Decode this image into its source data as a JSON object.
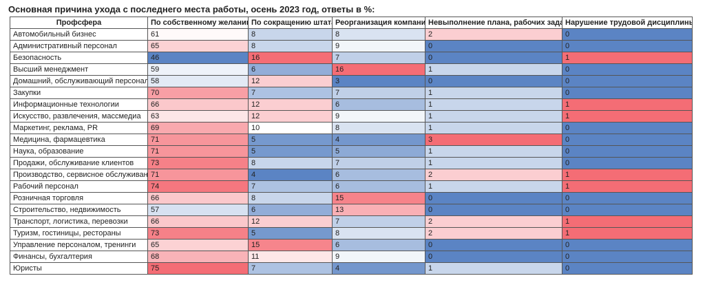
{
  "chart_data": {
    "type": "heatmap",
    "title": "Основная причина ухода с последнего места работы, осень 2023 год, ответы в %:",
    "row_header": "Профсфера",
    "columns": [
      "По собственному желанию",
      "По сокращению штата",
      "Реорганизация компании",
      "Невыполнение плана, рабочих задач",
      "Нарушение трудовой дисциплины"
    ],
    "rows": [
      "Автомобильный бизнес",
      "Административный персонал",
      "Безопасность",
      "Высший менеджмент",
      "Домашний, обслуживающий персонал",
      "Закупки",
      "Информационные технологии",
      "Искусство, развлечения, массмедиа",
      "Маркетинг, реклама, PR",
      "Медицина, фармацевтика",
      "Наука, образование",
      "Продажи, обслуживание клиентов",
      "Производство, сервисное обслуживание",
      "Рабочий персонал",
      "Розничная торговля",
      "Строительство, недвижимость",
      "Транспорт, логистика, перевозки",
      "Туризм, гостиницы, рестораны",
      "Управление персоналом, тренинги",
      "Финансы, бухгалтерия",
      "Юристы"
    ],
    "values": [
      [
        61,
        8,
        8,
        2,
        0
      ],
      [
        65,
        8,
        9,
        0,
        0
      ],
      [
        46,
        16,
        7,
        0,
        1
      ],
      [
        59,
        6,
        16,
        1,
        0
      ],
      [
        58,
        12,
        3,
        0,
        0
      ],
      [
        70,
        7,
        7,
        1,
        0
      ],
      [
        66,
        12,
        6,
        1,
        1
      ],
      [
        63,
        12,
        9,
        1,
        1
      ],
      [
        69,
        10,
        8,
        1,
        0
      ],
      [
        71,
        5,
        4,
        3,
        0
      ],
      [
        71,
        5,
        5,
        1,
        0
      ],
      [
        73,
        8,
        7,
        1,
        0
      ],
      [
        71,
        4,
        6,
        2,
        1
      ],
      [
        74,
        7,
        6,
        1,
        1
      ],
      [
        66,
        8,
        15,
        0,
        0
      ],
      [
        57,
        6,
        13,
        0,
        0
      ],
      [
        66,
        12,
        7,
        2,
        1
      ],
      [
        73,
        5,
        8,
        2,
        1
      ],
      [
        65,
        15,
        6,
        0,
        0
      ],
      [
        68,
        11,
        9,
        0,
        0
      ],
      [
        75,
        7,
        4,
        1,
        0
      ]
    ],
    "color_scale": {
      "low": "#5b84c4",
      "mid": "#ffffff",
      "high": "#f46d75"
    }
  }
}
